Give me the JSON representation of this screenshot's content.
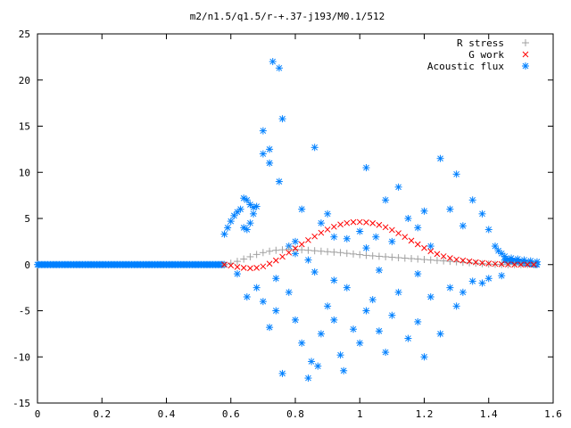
{
  "chart_data": {
    "type": "scatter",
    "title": "m2/n1.5/q1.5/r-+.37-j193/M0.1/512",
    "xlabel": "",
    "ylabel": "",
    "xlim": [
      0,
      1.6
    ],
    "ylim": [
      -15,
      25
    ],
    "x_ticks": [
      "0",
      "0.2",
      "0.4",
      "0.6",
      "0.8",
      "1",
      "1.2",
      "1.4",
      "1.6"
    ],
    "y_ticks": [
      "-15",
      "-10",
      "-5",
      "0",
      "5",
      "10",
      "15",
      "20",
      "25"
    ],
    "grid": false,
    "legend_placement": "top-right",
    "series": [
      {
        "name": "R stress",
        "marker": "+",
        "color": "#a0a0a0",
        "points": [
          [
            0.58,
            0.0
          ],
          [
            0.6,
            0.15
          ],
          [
            0.62,
            0.35
          ],
          [
            0.64,
            0.6
          ],
          [
            0.66,
            0.85
          ],
          [
            0.68,
            1.1
          ],
          [
            0.7,
            1.3
          ],
          [
            0.72,
            1.45
          ],
          [
            0.74,
            1.55
          ],
          [
            0.76,
            1.6
          ],
          [
            0.78,
            1.65
          ],
          [
            0.8,
            1.65
          ],
          [
            0.82,
            1.6
          ],
          [
            0.84,
            1.55
          ],
          [
            0.86,
            1.5
          ],
          [
            0.88,
            1.45
          ],
          [
            0.9,
            1.4
          ],
          [
            0.92,
            1.35
          ],
          [
            0.94,
            1.3
          ],
          [
            0.96,
            1.22
          ],
          [
            0.98,
            1.15
          ],
          [
            1.0,
            1.08
          ],
          [
            1.02,
            1.0
          ],
          [
            1.04,
            0.95
          ],
          [
            1.06,
            0.9
          ],
          [
            1.08,
            0.85
          ],
          [
            1.1,
            0.8
          ],
          [
            1.12,
            0.75
          ],
          [
            1.14,
            0.7
          ],
          [
            1.16,
            0.65
          ],
          [
            1.18,
            0.6
          ],
          [
            1.2,
            0.55
          ],
          [
            1.22,
            0.5
          ],
          [
            1.24,
            0.45
          ],
          [
            1.26,
            0.4
          ],
          [
            1.28,
            0.35
          ],
          [
            1.3,
            0.3
          ],
          [
            1.32,
            0.25
          ],
          [
            1.34,
            0.2
          ],
          [
            1.36,
            0.15
          ],
          [
            1.38,
            0.1
          ],
          [
            1.4,
            0.06
          ],
          [
            1.42,
            0.03
          ],
          [
            1.44,
            0.01
          ],
          [
            1.46,
            0.0
          ],
          [
            1.48,
            0.0
          ],
          [
            1.5,
            0.0
          ],
          [
            1.52,
            0.0
          ],
          [
            1.54,
            0.0
          ]
        ]
      },
      {
        "name": "G work",
        "marker": "x",
        "color": "#ff0000",
        "points": [
          [
            0.58,
            0.0
          ],
          [
            0.6,
            -0.1
          ],
          [
            0.62,
            -0.25
          ],
          [
            0.64,
            -0.35
          ],
          [
            0.66,
            -0.4
          ],
          [
            0.68,
            -0.35
          ],
          [
            0.7,
            -0.2
          ],
          [
            0.72,
            0.1
          ],
          [
            0.74,
            0.45
          ],
          [
            0.76,
            0.85
          ],
          [
            0.78,
            1.3
          ],
          [
            0.8,
            1.75
          ],
          [
            0.82,
            2.2
          ],
          [
            0.84,
            2.65
          ],
          [
            0.86,
            3.05
          ],
          [
            0.88,
            3.45
          ],
          [
            0.9,
            3.8
          ],
          [
            0.92,
            4.1
          ],
          [
            0.94,
            4.35
          ],
          [
            0.96,
            4.5
          ],
          [
            0.98,
            4.6
          ],
          [
            1.0,
            4.62
          ],
          [
            1.02,
            4.58
          ],
          [
            1.04,
            4.48
          ],
          [
            1.06,
            4.3
          ],
          [
            1.08,
            4.05
          ],
          [
            1.1,
            3.75
          ],
          [
            1.12,
            3.4
          ],
          [
            1.14,
            3.0
          ],
          [
            1.16,
            2.6
          ],
          [
            1.18,
            2.2
          ],
          [
            1.2,
            1.8
          ],
          [
            1.22,
            1.45
          ],
          [
            1.24,
            1.15
          ],
          [
            1.26,
            0.9
          ],
          [
            1.28,
            0.7
          ],
          [
            1.3,
            0.55
          ],
          [
            1.32,
            0.45
          ],
          [
            1.34,
            0.35
          ],
          [
            1.36,
            0.25
          ],
          [
            1.38,
            0.18
          ],
          [
            1.4,
            0.12
          ],
          [
            1.42,
            0.08
          ],
          [
            1.44,
            0.05
          ],
          [
            1.46,
            0.02
          ],
          [
            1.48,
            0.0
          ],
          [
            1.5,
            0.0
          ],
          [
            1.52,
            0.0
          ],
          [
            1.54,
            0.0
          ]
        ]
      },
      {
        "name": "Acoustic flux",
        "marker": "*",
        "color": "#0080ff",
        "baseline_segments": [
          [
            0.0,
            0.58,
            0.0
          ],
          [
            1.45,
            1.55,
            0.5
          ]
        ],
        "points": [
          [
            0.58,
            3.3
          ],
          [
            0.59,
            4.0
          ],
          [
            0.6,
            4.7
          ],
          [
            0.61,
            5.3
          ],
          [
            0.62,
            5.7
          ],
          [
            0.63,
            6.0
          ],
          [
            0.64,
            7.2
          ],
          [
            0.65,
            7.0
          ],
          [
            0.66,
            6.5
          ],
          [
            0.67,
            6.2
          ],
          [
            0.64,
            4.0
          ],
          [
            0.65,
            3.8
          ],
          [
            0.66,
            4.5
          ],
          [
            0.67,
            5.5
          ],
          [
            0.68,
            6.3
          ],
          [
            0.7,
            12.0
          ],
          [
            0.7,
            14.5
          ],
          [
            0.72,
            12.5
          ],
          [
            0.72,
            11.0
          ],
          [
            0.73,
            22.0
          ],
          [
            0.75,
            21.3
          ],
          [
            0.76,
            15.8
          ],
          [
            0.75,
            9.0
          ],
          [
            0.78,
            2.0
          ],
          [
            0.8,
            2.5
          ],
          [
            0.82,
            6.0
          ],
          [
            0.86,
            12.7
          ],
          [
            0.88,
            4.5
          ],
          [
            0.9,
            5.5
          ],
          [
            0.92,
            3.0
          ],
          [
            0.96,
            2.8
          ],
          [
            1.0,
            3.6
          ],
          [
            1.02,
            1.8
          ],
          [
            1.02,
            10.5
          ],
          [
            1.05,
            3.0
          ],
          [
            1.08,
            7.0
          ],
          [
            1.12,
            8.4
          ],
          [
            1.15,
            5.0
          ],
          [
            1.18,
            4.0
          ],
          [
            1.2,
            5.8
          ],
          [
            1.25,
            11.5
          ],
          [
            1.28,
            6.0
          ],
          [
            1.3,
            9.8
          ],
          [
            1.32,
            4.2
          ],
          [
            1.35,
            7.0
          ],
          [
            1.38,
            5.5
          ],
          [
            1.4,
            3.8
          ],
          [
            1.42,
            2.0
          ],
          [
            1.43,
            1.5
          ],
          [
            1.44,
            1.2
          ],
          [
            1.45,
            0.9
          ],
          [
            1.47,
            0.7
          ],
          [
            1.49,
            0.6
          ],
          [
            1.51,
            0.5
          ],
          [
            1.53,
            0.4
          ],
          [
            1.55,
            0.3
          ],
          [
            0.62,
            -1.0
          ],
          [
            0.65,
            -3.5
          ],
          [
            0.68,
            -2.5
          ],
          [
            0.7,
            -4.0
          ],
          [
            0.72,
            -6.8
          ],
          [
            0.74,
            -5.0
          ],
          [
            0.76,
            -11.8
          ],
          [
            0.78,
            -3.0
          ],
          [
            0.8,
            -6.0
          ],
          [
            0.82,
            -8.5
          ],
          [
            0.84,
            -12.3
          ],
          [
            0.85,
            -10.5
          ],
          [
            0.87,
            -11.0
          ],
          [
            0.88,
            -7.5
          ],
          [
            0.9,
            -4.5
          ],
          [
            0.92,
            -6.0
          ],
          [
            0.94,
            -9.8
          ],
          [
            0.95,
            -11.5
          ],
          [
            0.96,
            -2.5
          ],
          [
            0.98,
            -7.0
          ],
          [
            1.0,
            -8.5
          ],
          [
            1.02,
            -5.0
          ],
          [
            1.04,
            -3.8
          ],
          [
            1.06,
            -7.2
          ],
          [
            1.08,
            -9.5
          ],
          [
            1.1,
            -5.5
          ],
          [
            1.12,
            -3.0
          ],
          [
            1.15,
            -8.0
          ],
          [
            1.18,
            -6.2
          ],
          [
            1.2,
            -10.0
          ],
          [
            1.22,
            -3.5
          ],
          [
            1.25,
            -7.5
          ],
          [
            1.28,
            -2.5
          ],
          [
            1.3,
            -4.5
          ],
          [
            1.32,
            -3.0
          ],
          [
            1.35,
            -1.8
          ],
          [
            1.38,
            -2.0
          ],
          [
            1.4,
            -1.5
          ],
          [
            1.44,
            -1.2
          ],
          [
            0.74,
            -1.5
          ],
          [
            0.86,
            -0.8
          ],
          [
            0.92,
            -1.7
          ],
          [
            1.06,
            -0.6
          ],
          [
            1.18,
            -1.0
          ],
          [
            0.8,
            1.2
          ],
          [
            0.84,
            0.5
          ],
          [
            1.1,
            2.5
          ],
          [
            1.22,
            2.0
          ]
        ]
      }
    ]
  }
}
